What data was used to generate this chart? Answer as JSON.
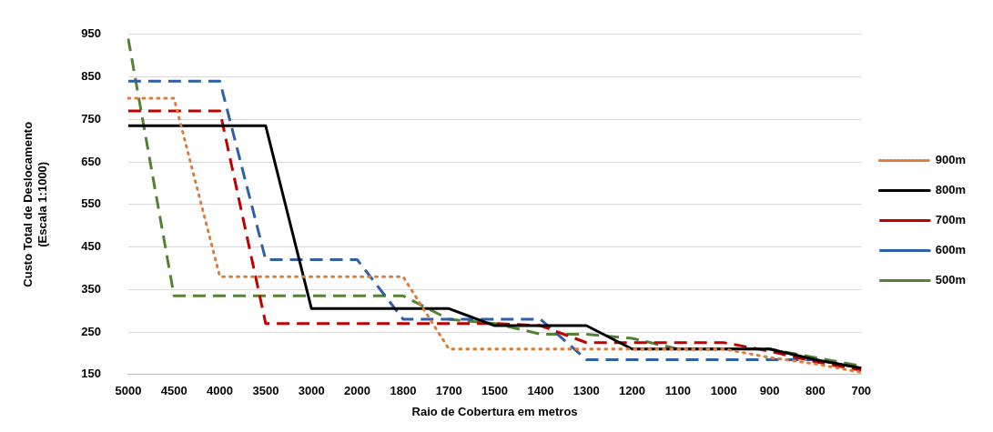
{
  "chart_data": {
    "type": "line",
    "xlabel": "Raio de Cobertura em metros",
    "ylabel": "Custo Total de Deslocamento\n(Escala 1:1000)",
    "categories": [
      "5000",
      "4500",
      "4000",
      "3500",
      "3000",
      "2000",
      "1800",
      "1700",
      "1500",
      "1400",
      "1300",
      "1200",
      "1100",
      "1000",
      "900",
      "800",
      "700"
    ],
    "series": [
      {
        "name": "900m",
        "color": "#e07b39",
        "line_style": "dotted",
        "values": [
          800,
          800,
          380,
          380,
          380,
          380,
          380,
          210,
          210,
          210,
          210,
          210,
          210,
          210,
          190,
          175,
          155
        ]
      },
      {
        "name": "800m",
        "color": "#000000",
        "line_style": "solid",
        "values": [
          735,
          735,
          735,
          735,
          305,
          305,
          305,
          305,
          265,
          265,
          265,
          210,
          210,
          210,
          210,
          185,
          165
        ]
      },
      {
        "name": "700m",
        "color": "#c00000",
        "line_style": "dashed",
        "values": [
          770,
          770,
          770,
          270,
          270,
          270,
          270,
          270,
          270,
          265,
          225,
          225,
          225,
          225,
          205,
          180,
          160
        ]
      },
      {
        "name": "600m",
        "color": "#2e5fa8",
        "line_style": "dashed",
        "values": [
          840,
          840,
          840,
          420,
          420,
          420,
          280,
          280,
          280,
          280,
          185,
          185,
          185,
          185,
          185,
          185,
          165
        ]
      },
      {
        "name": "500m",
        "color": "#548235",
        "line_style": "dashed",
        "values": [
          940,
          335,
          335,
          335,
          335,
          335,
          335,
          280,
          270,
          245,
          245,
          235,
          210,
          210,
          210,
          190,
          170
        ]
      }
    ],
    "ylim": [
      150,
      950
    ],
    "yticks": [
      150,
      250,
      350,
      450,
      550,
      650,
      750,
      850,
      950
    ],
    "grid": "y",
    "legend": "right",
    "marker": "none"
  }
}
